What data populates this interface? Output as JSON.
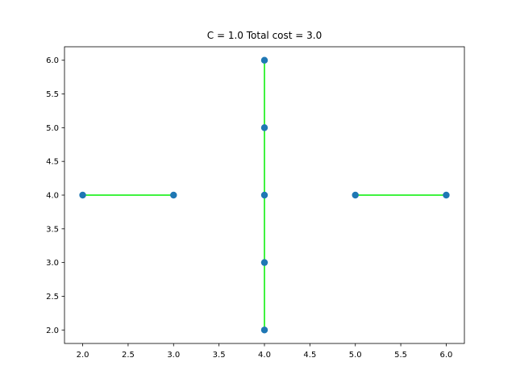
{
  "chart_data": {
    "type": "scatter",
    "title": "C = 1.0   Total cost = 3.0",
    "xlabel": "",
    "ylabel": "",
    "xlim": [
      1.8,
      6.2
    ],
    "ylim": [
      1.8,
      6.2
    ],
    "grid": false,
    "x_ticks": [
      "2.0",
      "2.5",
      "3.0",
      "3.5",
      "4.0",
      "4.5",
      "5.0",
      "5.5",
      "6.0"
    ],
    "y_ticks": [
      "2.0",
      "2.5",
      "3.0",
      "3.5",
      "4.0",
      "4.5",
      "5.0",
      "5.5",
      "6.0"
    ],
    "points": [
      {
        "x": 2.0,
        "y": 4.0
      },
      {
        "x": 3.0,
        "y": 4.0
      },
      {
        "x": 4.0,
        "y": 6.0
      },
      {
        "x": 4.0,
        "y": 5.0
      },
      {
        "x": 4.0,
        "y": 4.0
      },
      {
        "x": 4.0,
        "y": 3.0
      },
      {
        "x": 4.0,
        "y": 2.0
      },
      {
        "x": 5.0,
        "y": 4.0
      },
      {
        "x": 6.0,
        "y": 4.0
      }
    ],
    "edges": [
      {
        "x1": 2.0,
        "y1": 4.0,
        "x2": 3.0,
        "y2": 4.0
      },
      {
        "x1": 4.0,
        "y1": 2.0,
        "x2": 4.0,
        "y2": 6.0
      },
      {
        "x1": 5.0,
        "y1": 4.0,
        "x2": 6.0,
        "y2": 4.0
      }
    ],
    "colors": {
      "point": "#1f77b4",
      "edge": "#00ee00",
      "axes": "#000000"
    }
  }
}
